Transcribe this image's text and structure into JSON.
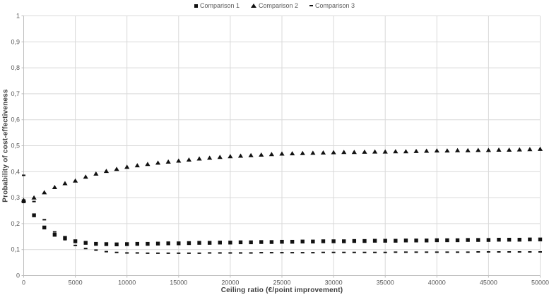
{
  "chart_data": {
    "type": "scatter",
    "title": "",
    "xlabel": "Ceiling ratio (€/point improvement)",
    "ylabel": "Probability of cost-effectiveness",
    "xlim": [
      0,
      50000
    ],
    "ylim": [
      0,
      1
    ],
    "grid": true,
    "legend_position": "top-center",
    "x_ticks": [
      {
        "value": 0,
        "label": "0"
      },
      {
        "value": 5000,
        "label": "5000"
      },
      {
        "value": 10000,
        "label": "10000"
      },
      {
        "value": 15000,
        "label": "15000"
      },
      {
        "value": 20000,
        "label": "20000"
      },
      {
        "value": 25000,
        "label": "25000"
      },
      {
        "value": 30000,
        "label": "30000"
      },
      {
        "value": 35000,
        "label": "35000"
      },
      {
        "value": 40000,
        "label": "40000"
      },
      {
        "value": 45000,
        "label": "45000"
      },
      {
        "value": 50000,
        "label": "50000"
      }
    ],
    "y_ticks": [
      {
        "value": 1.0,
        "label": "1"
      },
      {
        "value": 0.9,
        "label": "0,9"
      },
      {
        "value": 0.8,
        "label": "0,8"
      },
      {
        "value": 0.7,
        "label": "0,7"
      },
      {
        "value": 0.6,
        "label": "0,6"
      },
      {
        "value": 0.5,
        "label": "0,5"
      },
      {
        "value": 0.4,
        "label": "0,4"
      },
      {
        "value": 0.3,
        "label": "0,3"
      },
      {
        "value": 0.2,
        "label": "0,2"
      },
      {
        "value": 0.1,
        "label": "0,1"
      },
      {
        "value": 0.0,
        "label": "0"
      }
    ],
    "x": [
      0,
      1000,
      2000,
      3000,
      4000,
      5000,
      6000,
      7000,
      8000,
      9000,
      10000,
      11000,
      12000,
      13000,
      14000,
      15000,
      16000,
      17000,
      18000,
      19000,
      20000,
      21000,
      22000,
      23000,
      24000,
      25000,
      26000,
      27000,
      28000,
      29000,
      30000,
      31000,
      32000,
      33000,
      34000,
      35000,
      36000,
      37000,
      38000,
      39000,
      40000,
      41000,
      42000,
      43000,
      44000,
      45000,
      46000,
      47000,
      48000,
      49000,
      50000
    ],
    "series": [
      {
        "name": "Comparison 1",
        "marker": "square",
        "values": [
          0.286,
          0.232,
          0.185,
          0.157,
          0.145,
          0.132,
          0.126,
          0.122,
          0.121,
          0.12,
          0.121,
          0.122,
          0.122,
          0.123,
          0.124,
          0.124,
          0.125,
          0.126,
          0.126,
          0.127,
          0.127,
          0.128,
          0.128,
          0.129,
          0.129,
          0.13,
          0.13,
          0.131,
          0.131,
          0.132,
          0.132,
          0.132,
          0.133,
          0.133,
          0.134,
          0.134,
          0.134,
          0.135,
          0.135,
          0.135,
          0.136,
          0.136,
          0.136,
          0.137,
          0.137,
          0.137,
          0.138,
          0.138,
          0.138,
          0.139,
          0.139
        ]
      },
      {
        "name": "Comparison 2",
        "marker": "triangle",
        "values": [
          0.29,
          0.3,
          0.32,
          0.34,
          0.355,
          0.365,
          0.38,
          0.392,
          0.402,
          0.41,
          0.418,
          0.424,
          0.429,
          0.434,
          0.438,
          0.442,
          0.446,
          0.45,
          0.453,
          0.456,
          0.459,
          0.461,
          0.463,
          0.465,
          0.467,
          0.469,
          0.47,
          0.471,
          0.472,
          0.473,
          0.474,
          0.475,
          0.475,
          0.476,
          0.477,
          0.477,
          0.478,
          0.478,
          0.479,
          0.48,
          0.481,
          0.481,
          0.482,
          0.482,
          0.483,
          0.483,
          0.484,
          0.484,
          0.485,
          0.486,
          0.487
        ]
      },
      {
        "name": "Comparison 3",
        "marker": "dash",
        "values": [
          0.386,
          0.285,
          0.215,
          0.168,
          0.138,
          0.116,
          0.104,
          0.098,
          0.092,
          0.089,
          0.087,
          0.087,
          0.086,
          0.086,
          0.086,
          0.086,
          0.086,
          0.086,
          0.087,
          0.087,
          0.087,
          0.087,
          0.087,
          0.088,
          0.088,
          0.088,
          0.088,
          0.088,
          0.088,
          0.089,
          0.089,
          0.089,
          0.089,
          0.089,
          0.089,
          0.089,
          0.09,
          0.09,
          0.09,
          0.09,
          0.09,
          0.09,
          0.09,
          0.09,
          0.091,
          0.091,
          0.091,
          0.091,
          0.091,
          0.091,
          0.091
        ]
      }
    ],
    "colors": {
      "marker": "#111111",
      "grid": "#d9d9d9",
      "axis": "#bfbfbf",
      "tick_text": "#595959",
      "title_text": "#404040",
      "background": "#ffffff"
    }
  }
}
